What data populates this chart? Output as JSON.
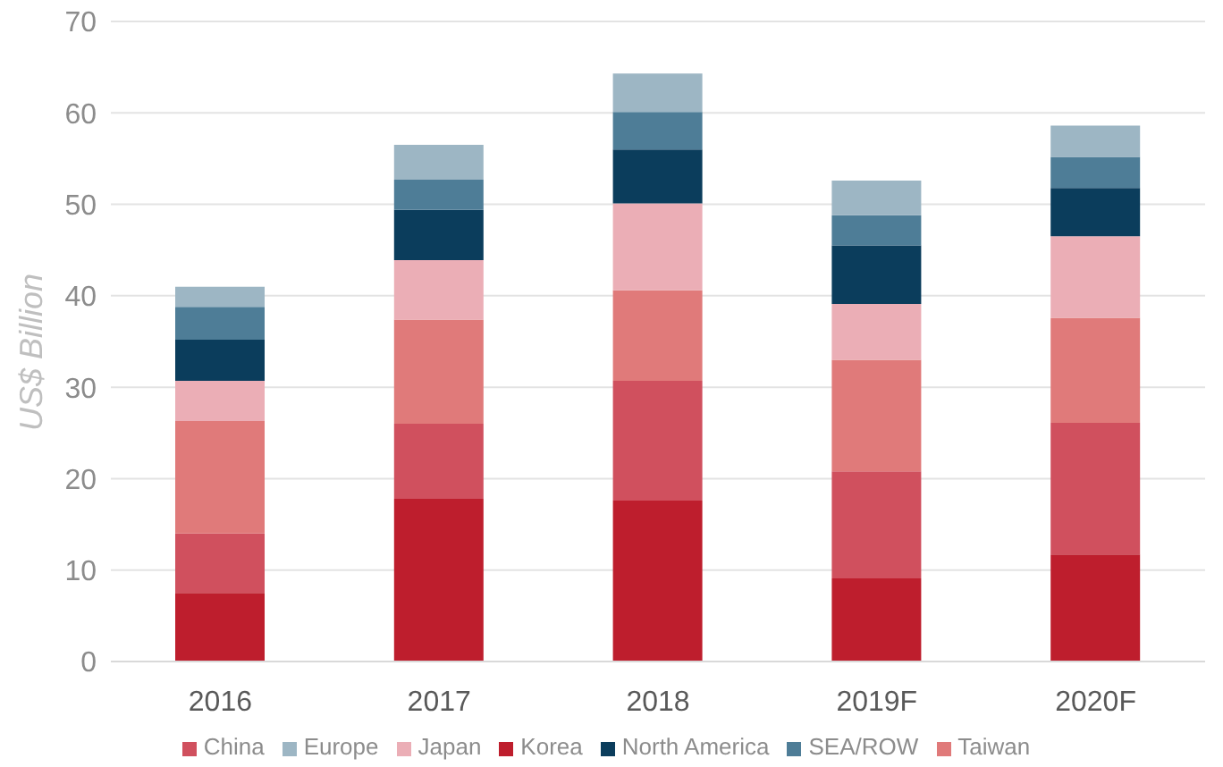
{
  "chart_data": {
    "type": "bar",
    "stacked": true,
    "ylabel": "US$ Billion",
    "categories": [
      "2016",
      "2017",
      "2018",
      "2019F",
      "2020F"
    ],
    "series": [
      {
        "name": "Korea",
        "color": "#be1e2d",
        "values": [
          7.5,
          17.8,
          17.6,
          9.1,
          11.7
        ]
      },
      {
        "name": "China",
        "color": "#d0505e",
        "values": [
          6.5,
          8.2,
          13.1,
          11.7,
          14.4
        ]
      },
      {
        "name": "Taiwan",
        "color": "#e07a7a",
        "values": [
          12.3,
          11.4,
          9.9,
          12.2,
          11.5
        ]
      },
      {
        "name": "Japan",
        "color": "#ebaeb6",
        "values": [
          4.4,
          6.5,
          9.5,
          6.1,
          8.9
        ]
      },
      {
        "name": "North America",
        "color": "#0b3d5c",
        "values": [
          4.5,
          5.5,
          5.9,
          6.4,
          5.3
        ]
      },
      {
        "name": "SEA/ROW",
        "color": "#4e7d97",
        "values": [
          3.6,
          3.3,
          4.1,
          3.3,
          3.4
        ]
      },
      {
        "name": "Europe",
        "color": "#9db6c4",
        "values": [
          2.2,
          3.8,
          4.2,
          3.8,
          3.4
        ]
      }
    ],
    "ylim": [
      0,
      70
    ],
    "yticks": [
      0,
      10,
      20,
      30,
      40,
      50,
      60,
      70
    ],
    "grid": "y",
    "legend": "bottom"
  }
}
